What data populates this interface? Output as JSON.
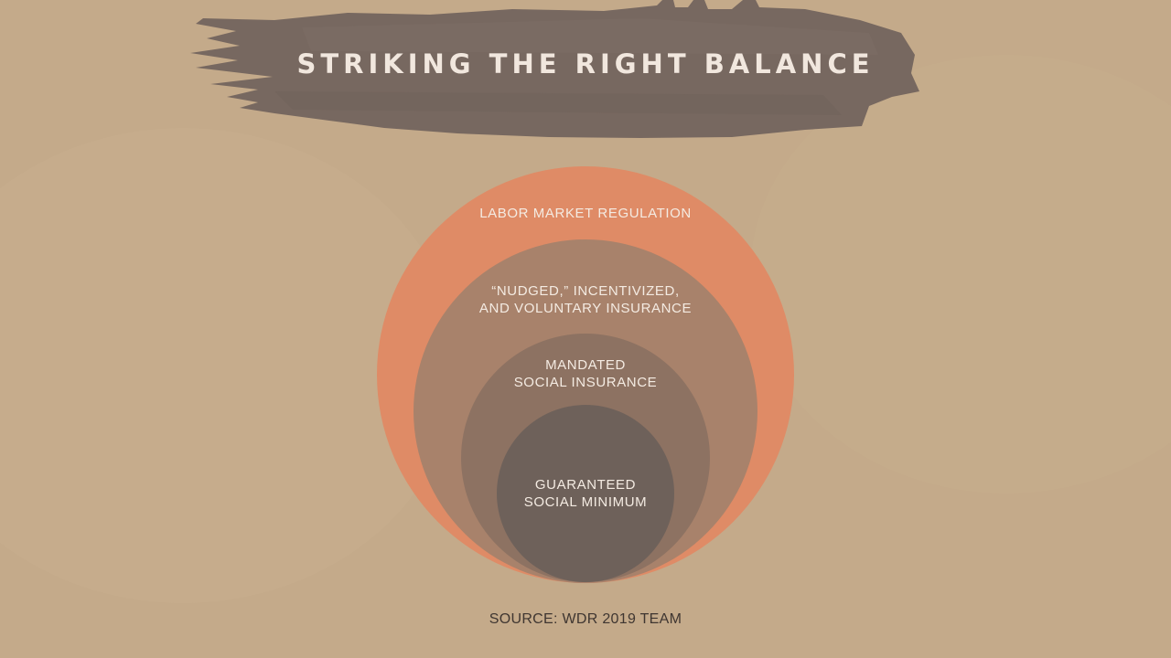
{
  "title": "STRIKING THE RIGHT BALANCE",
  "layers": [
    {
      "lines": [
        "LABOR MARKET REGULATION"
      ],
      "color": "#df8b66"
    },
    {
      "lines": [
        "“NUDGED,” INCENTIVIZED,",
        "AND VOLUNTARY INSURANCE"
      ],
      "color": "#a8826b"
    },
    {
      "lines": [
        "MANDATED",
        "SOCIAL INSURANCE"
      ],
      "color": "#8d7262"
    },
    {
      "lines": [
        "GUARANTEED",
        "SOCIAL MINIMUM"
      ],
      "color": "#6e615a"
    }
  ],
  "source": "SOURCE: WDR 2019 TEAM",
  "colors": {
    "background": "#c6ad8c",
    "brush": "#776860",
    "title_text": "#f1e7de",
    "label_text": "#f4ebe2",
    "source_text": "#3f3631"
  }
}
